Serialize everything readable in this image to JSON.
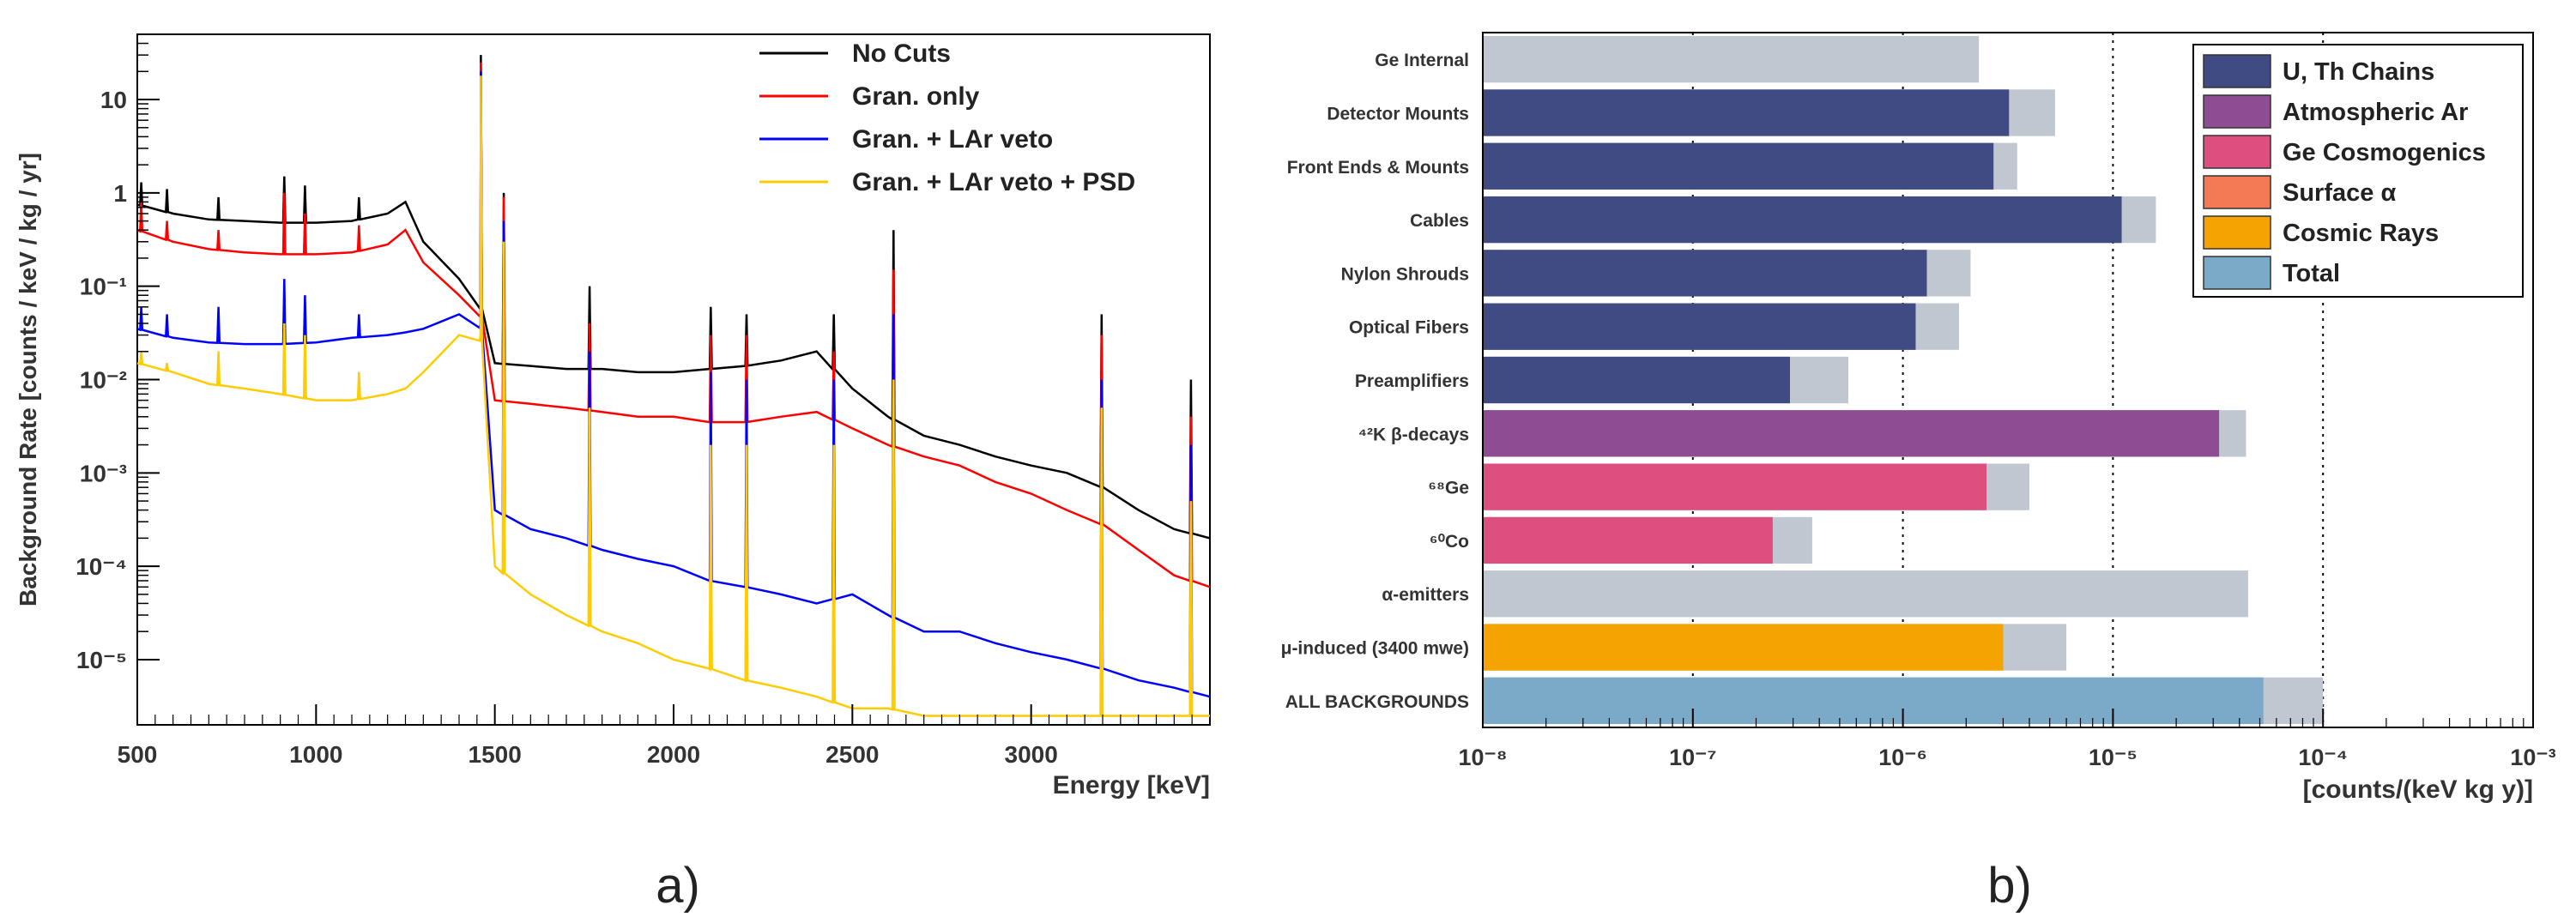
{
  "chart_data": [
    {
      "type": "line",
      "panel_label": "a)",
      "xlabel": "Energy [keV]",
      "ylabel": "Background Rate [counts / keV / kg / yr]",
      "xlim": [
        500,
        3500
      ],
      "ylim": [
        2e-06,
        50
      ],
      "yscale": "log",
      "grid": false,
      "legend": "top-right",
      "x_ticks": [
        "500",
        "1000",
        "1500",
        "2000",
        "2500",
        "3000"
      ],
      "x_tick_values": [
        500,
        1000,
        1500,
        2000,
        2500,
        3000
      ],
      "y_ticks": [
        "10⁻⁵",
        "10⁻⁴",
        "10⁻³",
        "10⁻²",
        "10⁻¹",
        "1",
        "10"
      ],
      "y_tick_values": [
        1e-05,
        0.0001,
        0.001,
        0.01,
        0.1,
        1,
        10
      ],
      "x": [
        500,
        600,
        700,
        800,
        900,
        1000,
        1100,
        1200,
        1250,
        1300,
        1400,
        1460,
        1500,
        1600,
        1700,
        1800,
        1900,
        2000,
        2100,
        2200,
        2300,
        2400,
        2500,
        2600,
        2700,
        2800,
        2900,
        3000,
        3100,
        3200,
        3300,
        3400,
        3500
      ],
      "series": [
        {
          "name": "No Cuts",
          "color": "#000000",
          "values": [
            0.75,
            0.6,
            0.52,
            0.5,
            0.48,
            0.48,
            0.5,
            0.6,
            0.8,
            0.3,
            0.12,
            0.06,
            0.015,
            0.014,
            0.013,
            0.013,
            0.012,
            0.012,
            0.013,
            0.014,
            0.016,
            0.02,
            0.008,
            0.004,
            0.0025,
            0.002,
            0.0015,
            0.0012,
            0.001,
            0.0007,
            0.0004,
            0.00025,
            0.0002
          ]
        },
        {
          "name": "Gran. only",
          "color": "#ff0000",
          "values": [
            0.4,
            0.3,
            0.25,
            0.23,
            0.22,
            0.22,
            0.23,
            0.28,
            0.4,
            0.18,
            0.08,
            0.05,
            0.006,
            0.0055,
            0.005,
            0.0045,
            0.004,
            0.004,
            0.0035,
            0.0035,
            0.004,
            0.0045,
            0.003,
            0.002,
            0.0015,
            0.0012,
            0.0008,
            0.0006,
            0.0004,
            0.00028,
            0.00015,
            8e-05,
            6e-05
          ]
        },
        {
          "name": "Gran. + LAr veto",
          "color": "#0000ff",
          "values": [
            0.035,
            0.028,
            0.025,
            0.024,
            0.024,
            0.025,
            0.028,
            0.03,
            0.032,
            0.035,
            0.05,
            0.04,
            0.0004,
            0.00025,
            0.0002,
            0.00015,
            0.00012,
            0.0001,
            7e-05,
            6e-05,
            5e-05,
            4e-05,
            5e-05,
            3e-05,
            2e-05,
            2e-05,
            1.5e-05,
            1.2e-05,
            1e-05,
            8e-06,
            6e-06,
            5e-06,
            4e-06
          ]
        },
        {
          "name": "Gran. + LAr veto + PSD",
          "color": "#ffcc00",
          "values": [
            0.015,
            0.012,
            0.009,
            0.008,
            0.007,
            0.006,
            0.006,
            0.007,
            0.008,
            0.012,
            0.03,
            0.03,
            0.0001,
            5e-05,
            3e-05,
            2e-05,
            1.5e-05,
            1e-05,
            8e-06,
            6e-06,
            5e-06,
            4e-06,
            3e-06,
            3e-06,
            2.5e-06,
            2.5e-06,
            2.5e-06,
            2.5e-06,
            2.5e-06,
            2.5e-06,
            2.5e-06,
            2.5e-06,
            2.5e-06
          ]
        }
      ],
      "peaks": [
        {
          "x": 511,
          "values": [
            1.3,
            0.8,
            0.06,
            0.02
          ]
        },
        {
          "x": 583,
          "values": [
            1.1,
            0.5,
            0.05,
            0.015
          ]
        },
        {
          "x": 727,
          "values": [
            0.9,
            0.4,
            0.06,
            0.02
          ]
        },
        {
          "x": 911,
          "values": [
            1.5,
            1.0,
            0.12,
            0.04
          ]
        },
        {
          "x": 969,
          "values": [
            1.2,
            0.6,
            0.08,
            0.03
          ]
        },
        {
          "x": 1120,
          "values": [
            0.9,
            0.45,
            0.05,
            0.012
          ]
        },
        {
          "x": 1461,
          "values": [
            30,
            25,
            20,
            18
          ]
        },
        {
          "x": 1525,
          "values": [
            1.0,
            0.9,
            0.5,
            0.3
          ]
        },
        {
          "x": 1765,
          "values": [
            0.1,
            0.04,
            0.02,
            0.005
          ]
        },
        {
          "x": 2104,
          "values": [
            0.06,
            0.03,
            0.012,
            0.002
          ]
        },
        {
          "x": 2204,
          "values": [
            0.05,
            0.03,
            0.01,
            0.002
          ]
        },
        {
          "x": 2448,
          "values": [
            0.05,
            0.02,
            0.01,
            0.002
          ]
        },
        {
          "x": 2615,
          "values": [
            0.4,
            0.15,
            0.05,
            0.01
          ]
        },
        {
          "x": 3197,
          "values": [
            0.05,
            0.03,
            0.01,
            0.005
          ]
        },
        {
          "x": 3447,
          "values": [
            0.01,
            0.004,
            0.002,
            0.0005
          ]
        }
      ]
    },
    {
      "type": "bar",
      "orientation": "horizontal",
      "panel_label": "b)",
      "xlabel": "[counts/(keV kg y)]",
      "xscale": "log",
      "xlim": [
        1e-08,
        0.001
      ],
      "grid": "vertical dotted at decades",
      "legend": "top-right",
      "x_tick_values": [
        1e-08,
        1e-07,
        1e-06,
        1e-05,
        0.0001,
        0.001
      ],
      "x_ticks": [
        "10⁻⁸",
        "10⁻⁷",
        "10⁻⁶",
        "10⁻⁵",
        "10⁻⁴",
        "10⁻³"
      ],
      "categories": [
        "Ge Internal",
        "Detector Mounts",
        "Front Ends & Mounts",
        "Cables",
        "Nylon Shrouds",
        "Optical Fibers",
        "Preamplifiers",
        "⁴²K β-decays",
        "⁶⁸Ge",
        "⁶⁰Co",
        "α-emitters",
        "μ-induced (3400 mwe)",
        "ALL BACKGROUNDS"
      ],
      "legend_entries": [
        {
          "name": "U, Th Chains",
          "color": "#3f4b82"
        },
        {
          "name": "Atmospheric Ar",
          "color": "#8e4d93"
        },
        {
          "name": "Ge Cosmogenics",
          "color": "#dd4f7e"
        },
        {
          "name": "Surface α",
          "color": "#f47a55"
        },
        {
          "name": "Cosmic Rays",
          "color": "#f5a300"
        },
        {
          "name": "Total",
          "color": "#7baac8"
        }
      ],
      "bars": [
        {
          "source": "",
          "value": 0,
          "total": 2.3e-06
        },
        {
          "source": "U, Th Chains",
          "value": 3.2e-06,
          "total": 5.3e-06
        },
        {
          "source": "U, Th Chains",
          "value": 2.7e-06,
          "total": 3.5e-06
        },
        {
          "source": "U, Th Chains",
          "value": 1.1e-05,
          "total": 1.6e-05
        },
        {
          "source": "U, Th Chains",
          "value": 1.3e-06,
          "total": 2.1e-06
        },
        {
          "source": "U, Th Chains",
          "value": 1.15e-06,
          "total": 1.85e-06
        },
        {
          "source": "U, Th Chains",
          "value": 2.9e-07,
          "total": 5.5e-07
        },
        {
          "source": "Atmospheric Ar",
          "value": 3.2e-05,
          "total": 4.3e-05
        },
        {
          "source": "Ge Cosmogenics",
          "value": 2.5e-06,
          "total": 4e-06
        },
        {
          "source": "Ge Cosmogenics",
          "value": 2.4e-07,
          "total": 3.7e-07
        },
        {
          "source": "",
          "value": 0,
          "total": 4.4e-05
        },
        {
          "source": "Cosmic Rays",
          "value": 3e-06,
          "total": 6e-06
        },
        {
          "source": "Total",
          "value": 5.2e-05,
          "total": 0.0001
        }
      ]
    }
  ]
}
